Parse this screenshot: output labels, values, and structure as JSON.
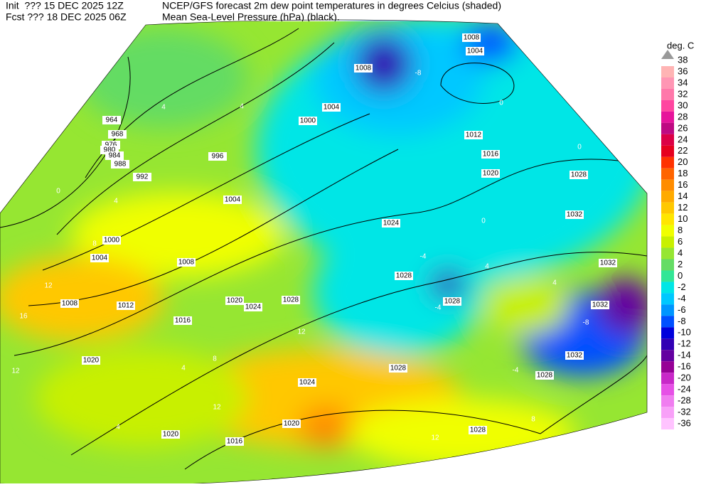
{
  "header": {
    "init": "Init  ??? 15 DEC 2025 12Z",
    "fcst": "Fcst ??? 18 DEC 2025 06Z",
    "title": "NCEP/GFS forecast 2m dew point temperatures in degrees Celcius (shaded)",
    "subtitle": "Mean Sea-Level Pressure (hPa) (black)."
  },
  "legend": {
    "unit": "deg. C",
    "max_label": 38,
    "levels": [
      {
        "value": 36,
        "color": "#ffb4b4"
      },
      {
        "value": 34,
        "color": "#ff96b4"
      },
      {
        "value": 32,
        "color": "#ff78aa"
      },
      {
        "value": 30,
        "color": "#ff46a0"
      },
      {
        "value": 28,
        "color": "#e6149b"
      },
      {
        "value": 26,
        "color": "#be0a82"
      },
      {
        "value": 24,
        "color": "#dc0046"
      },
      {
        "value": 22,
        "color": "#e6001e"
      },
      {
        "value": 20,
        "color": "#ff3200"
      },
      {
        "value": 18,
        "color": "#ff6400"
      },
      {
        "value": 16,
        "color": "#ff8c00"
      },
      {
        "value": 14,
        "color": "#ffaa00"
      },
      {
        "value": 12,
        "color": "#ffc800"
      },
      {
        "value": 10,
        "color": "#ffe600"
      },
      {
        "value": 8,
        "color": "#f0ff00"
      },
      {
        "value": 6,
        "color": "#c8f000"
      },
      {
        "value": 4,
        "color": "#96e632"
      },
      {
        "value": 2,
        "color": "#64dc64"
      },
      {
        "value": 0,
        "color": "#32e696"
      },
      {
        "value": -2,
        "color": "#00e6e6"
      },
      {
        "value": -4,
        "color": "#00c8ff"
      },
      {
        "value": -6,
        "color": "#0096ff"
      },
      {
        "value": -8,
        "color": "#0050ff"
      },
      {
        "value": -10,
        "color": "#0000dc"
      },
      {
        "value": -12,
        "color": "#3200b4"
      },
      {
        "value": -14,
        "color": "#6400a0"
      },
      {
        "value": -16,
        "color": "#960096"
      },
      {
        "value": -20,
        "color": "#c828c8"
      },
      {
        "value": -24,
        "color": "#e650e6"
      },
      {
        "value": -28,
        "color": "#f07df0"
      },
      {
        "value": -32,
        "color": "#f8a0f8"
      },
      {
        "value": -36,
        "color": "#ffc3ff"
      }
    ]
  },
  "isobar_labels": [
    964,
    968,
    976,
    980,
    984,
    988,
    992,
    996,
    1000,
    1004,
    1004,
    1008,
    1008,
    1012,
    1016,
    1020,
    1020,
    1024,
    1028,
    1024,
    1020,
    1020,
    1016,
    1028,
    1028,
    1028,
    1032,
    1032,
    1032,
    1032,
    1028,
    1024,
    1020,
    1016,
    1012,
    1004,
    1008,
    1008,
    1004,
    1000,
    1028,
    1028
  ],
  "dewpoint_labels": [
    0,
    4,
    8,
    12,
    16,
    12,
    4,
    8,
    12,
    12,
    4,
    4,
    0,
    0,
    0,
    -4,
    -4,
    4,
    4,
    -8,
    -4,
    12,
    8,
    4,
    -8
  ]
}
